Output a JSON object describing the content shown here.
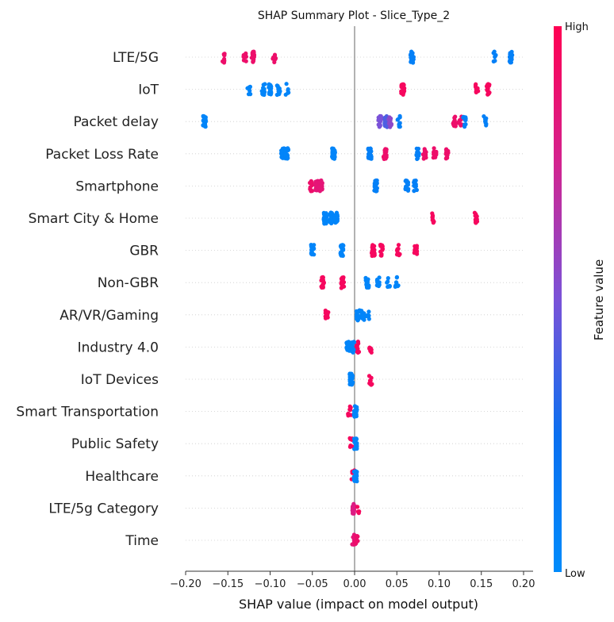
{
  "chart_data": {
    "type": "scatter",
    "subtype": "shap-beeswarm",
    "title": "SHAP Summary Plot - Slice_Type_2",
    "xlabel": "SHAP value (impact on model output)",
    "xlim": [
      -0.2,
      0.2
    ],
    "x_ticks": [
      -0.2,
      -0.15,
      -0.1,
      -0.05,
      0.0,
      0.05,
      0.1,
      0.15,
      0.2
    ],
    "x_tick_labels": [
      "−0.20",
      "−0.15",
      "−0.10",
      "−0.05",
      "0.00",
      "0.05",
      "0.10",
      "0.15",
      "0.20"
    ],
    "grid": "horizontal dotted per feature",
    "colorbar": {
      "label": "Feature value",
      "high_label": "High",
      "low_label": "Low",
      "low_color": "#008bfb",
      "high_color": "#ff0052"
    },
    "features": [
      {
        "name": "LTE/5G",
        "clusters": [
          [
            -0.155,
            0.9,
            8
          ],
          [
            -0.13,
            0.9,
            12
          ],
          [
            -0.12,
            0.9,
            18
          ],
          [
            -0.095,
            0.9,
            8
          ],
          [
            0.068,
            0.1,
            28
          ],
          [
            0.166,
            0.1,
            8
          ],
          [
            0.185,
            0.1,
            16
          ]
        ]
      },
      {
        "name": "IoT",
        "clusters": [
          [
            -0.125,
            0.05,
            10
          ],
          [
            -0.108,
            0.05,
            12
          ],
          [
            -0.1,
            0.05,
            24
          ],
          [
            -0.09,
            0.05,
            12
          ],
          [
            -0.08,
            0.05,
            6
          ],
          [
            0.057,
            0.95,
            26
          ],
          [
            0.145,
            0.95,
            10
          ],
          [
            0.158,
            0.95,
            16
          ]
        ]
      },
      {
        "name": "Packet delay",
        "clusters": [
          [
            -0.178,
            0.05,
            28
          ],
          [
            0.03,
            0.5,
            22
          ],
          [
            0.037,
            0.4,
            18
          ],
          [
            0.042,
            0.55,
            14
          ],
          [
            0.052,
            0.1,
            10
          ],
          [
            0.118,
            0.9,
            12
          ],
          [
            0.125,
            0.9,
            10
          ],
          [
            0.13,
            0.1,
            10
          ],
          [
            0.154,
            0.1,
            8
          ]
        ]
      },
      {
        "name": "Packet Loss Rate",
        "clusters": [
          [
            -0.085,
            0.05,
            20
          ],
          [
            -0.08,
            0.05,
            28
          ],
          [
            -0.025,
            0.05,
            32
          ],
          [
            0.018,
            0.1,
            28
          ],
          [
            0.036,
            0.9,
            18
          ],
          [
            0.075,
            0.1,
            16
          ],
          [
            0.083,
            0.9,
            16
          ],
          [
            0.095,
            0.9,
            12
          ],
          [
            0.11,
            0.9,
            12
          ]
        ]
      },
      {
        "name": "Smartphone",
        "clusters": [
          [
            -0.052,
            0.9,
            12
          ],
          [
            -0.045,
            0.85,
            22
          ],
          [
            -0.04,
            0.85,
            20
          ],
          [
            0.025,
            0.1,
            26
          ],
          [
            0.062,
            0.1,
            18
          ],
          [
            0.072,
            0.1,
            14
          ]
        ]
      },
      {
        "name": "Smart City & Home",
        "clusters": [
          [
            -0.035,
            0.05,
            26
          ],
          [
            -0.028,
            0.05,
            26
          ],
          [
            -0.022,
            0.05,
            28
          ],
          [
            0.092,
            0.95,
            10
          ],
          [
            0.144,
            0.95,
            14
          ]
        ]
      },
      {
        "name": "GBR",
        "clusters": [
          [
            -0.05,
            0.05,
            24
          ],
          [
            -0.015,
            0.05,
            28
          ],
          [
            0.022,
            0.95,
            24
          ],
          [
            0.032,
            0.95,
            12
          ],
          [
            0.052,
            0.95,
            10
          ],
          [
            0.072,
            0.95,
            12
          ]
        ]
      },
      {
        "name": "Non-GBR",
        "clusters": [
          [
            -0.038,
            0.95,
            16
          ],
          [
            -0.014,
            0.95,
            20
          ],
          [
            0.015,
            0.05,
            22
          ],
          [
            0.028,
            0.05,
            12
          ],
          [
            0.04,
            0.05,
            8
          ],
          [
            0.05,
            0.05,
            8
          ]
        ]
      },
      {
        "name": "AR/VR/Gaming",
        "clusters": [
          [
            -0.033,
            0.95,
            14
          ],
          [
            0.004,
            0.05,
            18
          ],
          [
            0.01,
            0.05,
            16
          ],
          [
            0.016,
            0.05,
            8
          ]
        ]
      },
      {
        "name": "Industry 4.0",
        "clusters": [
          [
            -0.008,
            0.05,
            22
          ],
          [
            -0.002,
            0.05,
            20
          ],
          [
            0.004,
            0.95,
            10
          ],
          [
            0.019,
            0.95,
            8
          ]
        ]
      },
      {
        "name": "IoT Devices",
        "clusters": [
          [
            -0.004,
            0.05,
            30
          ],
          [
            0.019,
            0.95,
            8
          ]
        ]
      },
      {
        "name": "Smart Transportation",
        "clusters": [
          [
            -0.006,
            0.95,
            8
          ],
          [
            0.001,
            0.05,
            24
          ]
        ]
      },
      {
        "name": "Public Safety",
        "clusters": [
          [
            -0.004,
            0.95,
            8
          ],
          [
            0.001,
            0.05,
            24
          ]
        ]
      },
      {
        "name": "Healthcare",
        "clusters": [
          [
            -0.002,
            0.95,
            8
          ],
          [
            0.001,
            0.05,
            22
          ]
        ]
      },
      {
        "name": "LTE/5g Category",
        "clusters": [
          [
            -0.001,
            0.8,
            20
          ],
          [
            0.005,
            0.95,
            4
          ]
        ]
      },
      {
        "name": "Time",
        "clusters": [
          [
            -0.001,
            0.85,
            22
          ],
          [
            0.002,
            0.9,
            10
          ]
        ]
      }
    ]
  }
}
